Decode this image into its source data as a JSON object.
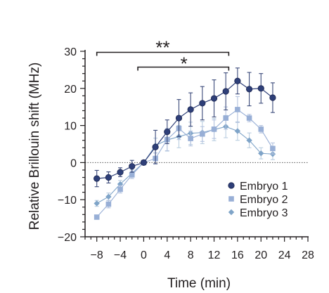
{
  "chart_data": {
    "type": "line",
    "xlabel": "Time (min)",
    "ylabel": "Relative Brillouin shift (MHz)",
    "xlim": [
      -10,
      28
    ],
    "ylim": [
      -20,
      30
    ],
    "xticks": [
      -8,
      -4,
      0,
      4,
      8,
      12,
      16,
      20,
      24,
      28
    ],
    "xtick_labels": [
      "−8",
      "−4",
      "0",
      "4",
      "8",
      "12",
      "16",
      "20",
      "24",
      "28"
    ],
    "yticks": [
      -20,
      -10,
      0,
      10,
      20,
      30
    ],
    "ytick_labels": [
      "−20",
      "−10",
      "0",
      "10",
      "20",
      "30"
    ],
    "zero_line": "dotted",
    "grid": false,
    "legend_position": "lower-right",
    "significance": [
      {
        "label": "**",
        "x_start": -8,
        "x_end": 14.5
      },
      {
        "label": "*",
        "x_start": -1,
        "x_end": 14.5
      }
    ],
    "series": [
      {
        "name": "Embryo 1",
        "marker": "circle",
        "color": "#2e3f78",
        "x": [
          -8,
          -6,
          -4,
          -2,
          0,
          2,
          4,
          6,
          8,
          10,
          12,
          14,
          16,
          18,
          20,
          22
        ],
        "y": [
          -4.3,
          -4.0,
          -2.6,
          -1.0,
          0,
          4.2,
          8.3,
          12.0,
          14.3,
          16.0,
          17.3,
          19.2,
          22.0,
          19.8,
          20.0,
          17.5
        ],
        "err": [
          2.2,
          1.5,
          1.2,
          1.6,
          0,
          4.5,
          3.2,
          5.0,
          4.5,
          4.5,
          5.0,
          5.0,
          3.5,
          4.5,
          4.0,
          4.0
        ]
      },
      {
        "name": "Embryo 2",
        "marker": "square",
        "color": "#98afd6",
        "x": [
          -8,
          -6,
          -4,
          -2,
          0,
          2,
          4,
          6,
          8,
          10,
          12,
          14,
          16,
          18,
          20,
          22
        ],
        "y": [
          -14.7,
          -11.2,
          -7.2,
          -3.3,
          0,
          1.1,
          6.2,
          9.2,
          6.5,
          7.7,
          9.0,
          12.0,
          14.3,
          12.0,
          9.0,
          3.8
        ],
        "err": [
          0.5,
          1.0,
          1.0,
          1.0,
          0,
          1.5,
          3.0,
          3.0,
          2.0,
          2.0,
          2.5,
          3.0,
          3.5,
          1.0,
          1.0,
          1.5
        ]
      },
      {
        "name": "Embryo 3",
        "marker": "diamond",
        "color": "#7fa4c8",
        "x": [
          -8,
          -6,
          -4,
          -2,
          0,
          2,
          4,
          6,
          8,
          10,
          12,
          14,
          16,
          18,
          20,
          22
        ],
        "y": [
          -11.0,
          -9.2,
          -5.8,
          -2.9,
          0,
          4.6,
          6.1,
          7.0,
          7.9,
          8.1,
          8.9,
          9.7,
          8.5,
          6.0,
          2.5,
          2.3
        ],
        "err": [
          0.8,
          1.0,
          1.0,
          1.0,
          0,
          2.0,
          3.0,
          3.0,
          3.0,
          3.0,
          3.0,
          3.0,
          2.5,
          2.0,
          1.5,
          1.5
        ]
      }
    ]
  }
}
